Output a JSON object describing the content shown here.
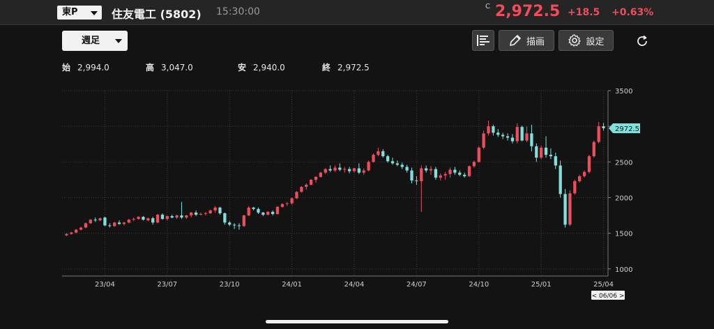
{
  "header": {
    "market": "東P",
    "name": "住友電工 (5802)",
    "time": "15:30:00",
    "price_prefix": "C",
    "price": "2,972.5",
    "change": "+18.5",
    "change_pct": "+0.63%"
  },
  "toolbar": {
    "period": "週足",
    "draw_label": "描画",
    "settings_label": "設定"
  },
  "ohlc": [
    {
      "key": "始",
      "value": "2,994.0"
    },
    {
      "key": "高",
      "value": "3,047.0"
    },
    {
      "key": "安",
      "value": "2,940.0"
    },
    {
      "key": "終",
      "value": "2,972.5"
    }
  ],
  "chart_data": {
    "type": "candlestick",
    "up_color": "#ef4d5c",
    "down_color": "#7fe0dc",
    "ylim": [
      900,
      3500
    ],
    "y_ticks": [
      3500,
      3000,
      2500,
      2000,
      1500,
      1000
    ],
    "x_ticks": [
      {
        "label": "23/04",
        "index": 8
      },
      {
        "label": "23/07",
        "index": 21
      },
      {
        "label": "23/10",
        "index": 34
      },
      {
        "label": "24/01",
        "index": 47
      },
      {
        "label": "24/04",
        "index": 60
      },
      {
        "label": "24/07",
        "index": 73
      },
      {
        "label": "24/10",
        "index": 86
      },
      {
        "label": "25/01",
        "index": 99
      },
      {
        "label": "25/04",
        "index": 112
      }
    ],
    "last_price_label": "2972.5",
    "last_price": 2972.5,
    "date_label": "< 06/06 >",
    "candles": [
      [
        1470,
        1500,
        1460,
        1490
      ],
      [
        1490,
        1520,
        1480,
        1510
      ],
      [
        1510,
        1560,
        1500,
        1550
      ],
      [
        1550,
        1590,
        1540,
        1580
      ],
      [
        1580,
        1650,
        1570,
        1640
      ],
      [
        1640,
        1700,
        1630,
        1690
      ],
      [
        1690,
        1720,
        1660,
        1680
      ],
      [
        1680,
        1720,
        1670,
        1710
      ],
      [
        1720,
        1730,
        1600,
        1610
      ],
      [
        1610,
        1640,
        1580,
        1600
      ],
      [
        1600,
        1660,
        1590,
        1650
      ],
      [
        1650,
        1680,
        1620,
        1630
      ],
      [
        1630,
        1660,
        1610,
        1650
      ],
      [
        1650,
        1700,
        1640,
        1690
      ],
      [
        1690,
        1720,
        1670,
        1700
      ],
      [
        1700,
        1740,
        1690,
        1730
      ],
      [
        1730,
        1740,
        1680,
        1690
      ],
      [
        1680,
        1720,
        1670,
        1710
      ],
      [
        1710,
        1730,
        1620,
        1650
      ],
      [
        1650,
        1770,
        1640,
        1760
      ],
      [
        1760,
        1780,
        1690,
        1700
      ],
      [
        1700,
        1750,
        1680,
        1740
      ],
      [
        1740,
        1760,
        1710,
        1720
      ],
      [
        1720,
        1760,
        1700,
        1750
      ],
      [
        1750,
        1940,
        1700,
        1720
      ],
      [
        1720,
        1760,
        1700,
        1750
      ],
      [
        1750,
        1800,
        1720,
        1790
      ],
      [
        1790,
        1820,
        1740,
        1760
      ],
      [
        1760,
        1790,
        1750,
        1770
      ],
      [
        1770,
        1800,
        1750,
        1780
      ],
      [
        1780,
        1830,
        1770,
        1820
      ],
      [
        1820,
        1880,
        1790,
        1860
      ],
      [
        1860,
        1870,
        1760,
        1780
      ],
      [
        1780,
        1790,
        1620,
        1650
      ],
      [
        1650,
        1670,
        1600,
        1620
      ],
      [
        1620,
        1640,
        1560,
        1610
      ],
      [
        1610,
        1640,
        1550,
        1600
      ],
      [
        1600,
        1760,
        1590,
        1750
      ],
      [
        1750,
        1880,
        1740,
        1860
      ],
      [
        1860,
        1870,
        1820,
        1840
      ],
      [
        1840,
        1860,
        1770,
        1790
      ],
      [
        1790,
        1800,
        1740,
        1760
      ],
      [
        1760,
        1810,
        1750,
        1800
      ],
      [
        1800,
        1820,
        1750,
        1770
      ],
      [
        1770,
        1880,
        1760,
        1870
      ],
      [
        1870,
        1920,
        1860,
        1910
      ],
      [
        1910,
        1940,
        1880,
        1920
      ],
      [
        1920,
        2000,
        1900,
        1990
      ],
      [
        1990,
        2090,
        1980,
        2080
      ],
      [
        2080,
        2160,
        2070,
        2150
      ],
      [
        2150,
        2200,
        2110,
        2180
      ],
      [
        2180,
        2260,
        2170,
        2250
      ],
      [
        2250,
        2300,
        2210,
        2290
      ],
      [
        2290,
        2360,
        2280,
        2350
      ],
      [
        2350,
        2410,
        2330,
        2400
      ],
      [
        2400,
        2450,
        2360,
        2380
      ],
      [
        2380,
        2450,
        2360,
        2420
      ],
      [
        2420,
        2480,
        2370,
        2390
      ],
      [
        2390,
        2430,
        2350,
        2400
      ],
      [
        2400,
        2430,
        2340,
        2370
      ],
      [
        2370,
        2420,
        2350,
        2410
      ],
      [
        2410,
        2480,
        2330,
        2350
      ],
      [
        2350,
        2410,
        2320,
        2380
      ],
      [
        2380,
        2520,
        2370,
        2500
      ],
      [
        2500,
        2620,
        2490,
        2600
      ],
      [
        2600,
        2700,
        2580,
        2650
      ],
      [
        2650,
        2680,
        2560,
        2580
      ],
      [
        2580,
        2600,
        2490,
        2510
      ],
      [
        2510,
        2560,
        2460,
        2480
      ],
      [
        2480,
        2520,
        2440,
        2460
      ],
      [
        2460,
        2490,
        2400,
        2430
      ],
      [
        2430,
        2460,
        2350,
        2380
      ],
      [
        2380,
        2420,
        2200,
        2240
      ],
      [
        2240,
        2300,
        2180,
        2230
      ],
      [
        2230,
        2450,
        1800,
        2410
      ],
      [
        2410,
        2450,
        2350,
        2380
      ],
      [
        2380,
        2440,
        2320,
        2400
      ],
      [
        2400,
        2430,
        2250,
        2280
      ],
      [
        2280,
        2340,
        2240,
        2310
      ],
      [
        2310,
        2360,
        2250,
        2330
      ],
      [
        2330,
        2420,
        2280,
        2390
      ],
      [
        2390,
        2430,
        2320,
        2350
      ],
      [
        2350,
        2380,
        2300,
        2320
      ],
      [
        2320,
        2350,
        2280,
        2300
      ],
      [
        2300,
        2450,
        2290,
        2440
      ],
      [
        2440,
        2520,
        2420,
        2500
      ],
      [
        2500,
        2720,
        2490,
        2700
      ],
      [
        2700,
        2940,
        2680,
        2900
      ],
      [
        2900,
        3080,
        2870,
        3000
      ],
      [
        3000,
        3020,
        2870,
        2910
      ],
      [
        2910,
        2960,
        2850,
        2880
      ],
      [
        2880,
        2910,
        2820,
        2860
      ],
      [
        2860,
        2900,
        2800,
        2840
      ],
      [
        2840,
        2890,
        2760,
        2790
      ],
      [
        2790,
        3040,
        2760,
        2990
      ],
      [
        2990,
        3010,
        2790,
        2800
      ],
      [
        2800,
        3000,
        2780,
        2900
      ],
      [
        2900,
        3020,
        2650,
        2720
      ],
      [
        2720,
        2760,
        2500,
        2560
      ],
      [
        2560,
        2730,
        2540,
        2700
      ],
      [
        2700,
        2860,
        2560,
        2600
      ],
      [
        2600,
        2690,
        2540,
        2580
      ],
      [
        2580,
        2630,
        2400,
        2450
      ],
      [
        2450,
        2520,
        2000,
        2050
      ],
      [
        2050,
        2120,
        1580,
        1620
      ],
      [
        1620,
        2100,
        1600,
        2060
      ],
      [
        2060,
        2250,
        2040,
        2230
      ],
      [
        2230,
        2320,
        2210,
        2300
      ],
      [
        2300,
        2380,
        2280,
        2360
      ],
      [
        2360,
        2600,
        2340,
        2580
      ],
      [
        2580,
        2800,
        2560,
        2780
      ],
      [
        2780,
        3060,
        2760,
        3000
      ],
      [
        3000,
        3047,
        2940,
        2972.5
      ]
    ]
  }
}
